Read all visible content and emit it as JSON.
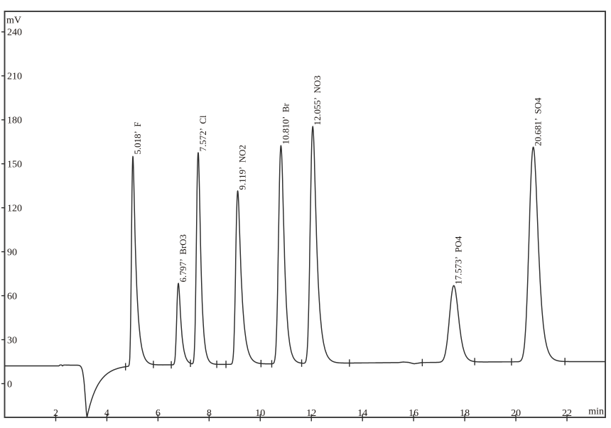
{
  "chart_data": {
    "type": "line",
    "kind": "ion-chromatogram",
    "title": "",
    "xlabel": "min",
    "ylabel": "mV",
    "xlim": [
      0,
      23.5
    ],
    "ylim": [
      -23,
      254
    ],
    "x_ticks": [
      2,
      4,
      6,
      8,
      10,
      12,
      14,
      16,
      18,
      20,
      22
    ],
    "y_ticks": [
      0,
      30,
      60,
      90,
      120,
      150,
      180,
      210,
      240
    ],
    "grid": false,
    "legend": false,
    "peaks": [
      {
        "rt_min": 5.018,
        "ion": "F",
        "display": "5.018’  F",
        "apex_mV": 155.7,
        "height_mV": 143.0,
        "sigma_min": 0.038,
        "tau_min": 0.132
      },
      {
        "rt_min": 6.797,
        "ion": "BrO3",
        "display": "6.797’  BrO3",
        "apex_mV": 68.5,
        "height_mV": 55.6,
        "sigma_min": 0.048,
        "tau_min": 0.108
      },
      {
        "rt_min": 7.572,
        "ion": "Cl",
        "display": "7.572’  Cl",
        "apex_mV": 157.7,
        "height_mV": 144.7,
        "sigma_min": 0.054,
        "tau_min": 0.096
      },
      {
        "rt_min": 9.119,
        "ion": "NO2",
        "display": "9.119’  NO2",
        "apex_mV": 131.5,
        "height_mV": 118.3,
        "sigma_min": 0.058,
        "tau_min": 0.146
      },
      {
        "rt_min": 10.81,
        "ion": "Br",
        "display": "10.810’  Br",
        "apex_mV": 162.5,
        "height_mV": 148.9,
        "sigma_min": 0.074,
        "tau_min": 0.12
      },
      {
        "rt_min": 12.055,
        "ion": "NO3",
        "display": "12.055’  NO3",
        "apex_mV": 175.5,
        "height_mV": 161.7,
        "sigma_min": 0.076,
        "tau_min": 0.15
      },
      {
        "rt_min": 17.573,
        "ion": "PO4",
        "display": "17.573’  PO4",
        "apex_mV": 66.9,
        "height_mV": 52.3,
        "sigma_min": 0.146,
        "tau_min": 0.13
      },
      {
        "rt_min": 20.681,
        "ion": "SO4",
        "display": "20.681’  SO4",
        "apex_mV": 161.4,
        "height_mV": 146.5,
        "sigma_min": 0.136,
        "tau_min": 0.154
      }
    ],
    "baseline_mV": [
      [
        0.0,
        12.1
      ],
      [
        2.12,
        12.1
      ],
      [
        2.17,
        12.75
      ],
      [
        2.23,
        12.75
      ],
      [
        2.26,
        12.05
      ],
      [
        2.31,
        12.7
      ],
      [
        2.6,
        12.6
      ],
      [
        4.7,
        12.7
      ],
      [
        7.0,
        12.9
      ],
      [
        9.0,
        13.2
      ],
      [
        11.0,
        13.6
      ],
      [
        13.0,
        13.95
      ],
      [
        15.0,
        14.3
      ],
      [
        15.4,
        14.35
      ],
      [
        15.6,
        14.75
      ],
      [
        15.8,
        14.5
      ],
      [
        16.02,
        13.55
      ],
      [
        16.32,
        14.35
      ],
      [
        16.6,
        14.45
      ],
      [
        17.5,
        14.6
      ],
      [
        18.5,
        14.75
      ],
      [
        20.0,
        14.9
      ],
      [
        22.0,
        15.0
      ],
      [
        23.5,
        15.0
      ]
    ],
    "injection_dip": {
      "time_min": 3.225,
      "depth_mV": 35.4,
      "left_width_min": 0.11,
      "left_power": 1.6,
      "right_width_min": 0.44,
      "right_power": 1.0
    },
    "integration_marks_min": [
      4.73,
      5.82,
      6.52,
      7.27,
      8.3,
      8.66,
      10.03,
      10.45,
      11.62,
      13.49,
      16.34,
      18.39,
      19.83,
      21.92
    ],
    "colors": {
      "background": "#ffffff",
      "frame": "#3a3a3a",
      "trace": "#2d2d2d",
      "tick": "#2f2f2f",
      "text": "#1b1512"
    }
  }
}
